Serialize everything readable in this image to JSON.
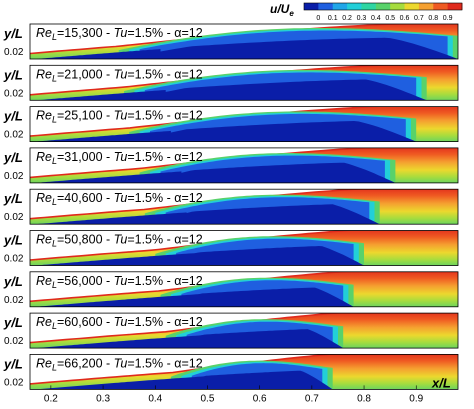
{
  "chart_data": {
    "type": "heatmap",
    "colorbar": {
      "title": "u/U",
      "title_subscript": "e",
      "ticks": [
        "0",
        "0.1",
        "0.2",
        "0.3",
        "0.4",
        "0.5",
        "0.6",
        "0.7",
        "0.8",
        "0.9"
      ],
      "colors": [
        "#0a1ea8",
        "#1f5fe0",
        "#20a6e8",
        "#22cfd8",
        "#2ed6a2",
        "#58d26a",
        "#a6dc3e",
        "#ecd82e",
        "#f5a030",
        "#ef5a22",
        "#e02a1c"
      ]
    },
    "xlabel": "x/L",
    "xticks": [
      "0.2",
      "0.3",
      "0.4",
      "0.5",
      "0.6",
      "0.7",
      "0.8",
      "0.9"
    ],
    "xrange": [
      0.16,
      0.98
    ],
    "ylabel": "y/L",
    "ytick": "0.02",
    "panels": [
      {
        "re": "15,300",
        "tu": "1.5%",
        "alpha": "12",
        "sep_start": 0.33,
        "sep_peak_x": 0.78,
        "sep_end": 0.98
      },
      {
        "re": "21,000",
        "tu": "1.5%",
        "alpha": "12",
        "sep_start": 0.34,
        "sep_peak_x": 0.74,
        "sep_end": 0.92
      },
      {
        "re": "25,100",
        "tu": "1.5%",
        "alpha": "12",
        "sep_start": 0.35,
        "sep_peak_x": 0.72,
        "sep_end": 0.9
      },
      {
        "re": "31,000",
        "tu": "1.5%",
        "alpha": "12",
        "sep_start": 0.37,
        "sep_peak_x": 0.7,
        "sep_end": 0.86
      },
      {
        "re": "40,600",
        "tu": "1.5%",
        "alpha": "12",
        "sep_start": 0.38,
        "sep_peak_x": 0.68,
        "sep_end": 0.83
      },
      {
        "re": "50,800",
        "tu": "1.5%",
        "alpha": "12",
        "sep_start": 0.4,
        "sep_peak_x": 0.66,
        "sep_end": 0.8
      },
      {
        "re": "56,000",
        "tu": "1.5%",
        "alpha": "12",
        "sep_start": 0.41,
        "sep_peak_x": 0.65,
        "sep_end": 0.78
      },
      {
        "re": "60,600",
        "tu": "1.5%",
        "alpha": "12",
        "sep_start": 0.42,
        "sep_peak_x": 0.64,
        "sep_end": 0.76
      },
      {
        "re": "66,200",
        "tu": "1.5%",
        "alpha": "12",
        "sep_start": 0.43,
        "sep_peak_x": 0.63,
        "sep_end": 0.74
      }
    ]
  }
}
